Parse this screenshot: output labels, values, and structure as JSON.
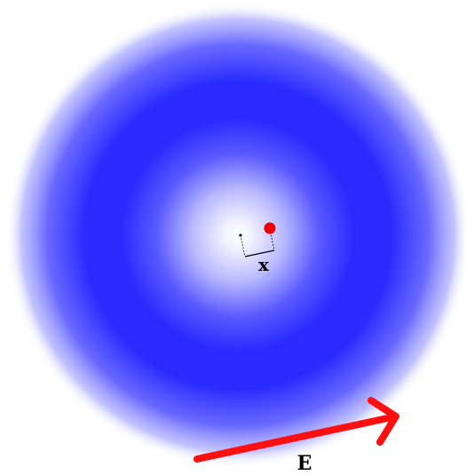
{
  "labels": {
    "displacement": "x",
    "field": "E"
  },
  "colors": {
    "cloud": "#2a2aff",
    "background": "#ffffff",
    "charge": "#ee0000",
    "field_arrow": "#ff1010",
    "lines": "#000000"
  }
}
